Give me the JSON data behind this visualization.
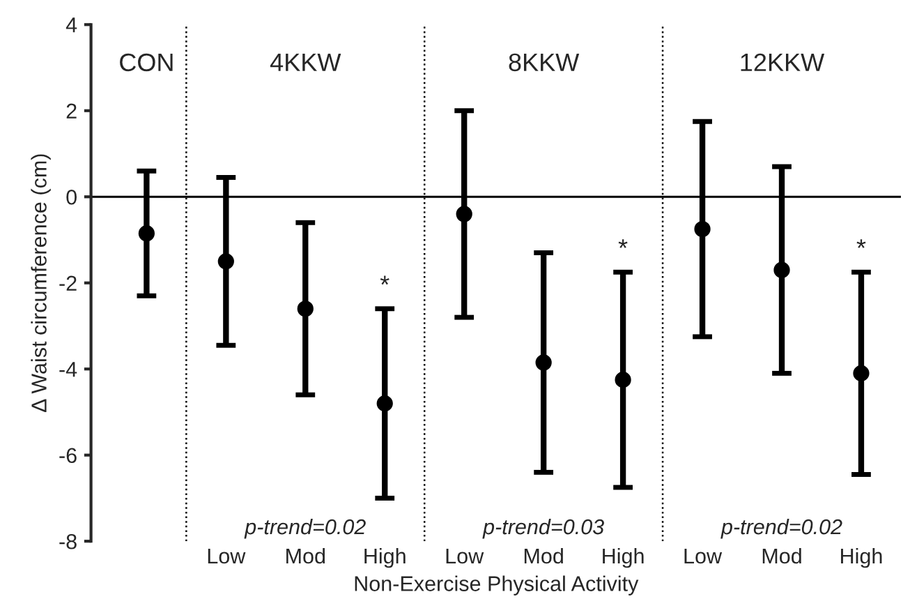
{
  "chart_data": {
    "type": "scatter",
    "xlabel": "Non-Exercise Physical Activity",
    "ylabel": "Δ Waist circumference (cm)",
    "categories": [
      null,
      "Low",
      "Mod",
      "High",
      "Low",
      "Mod",
      "High",
      "Low",
      "Mod",
      "High"
    ],
    "series": [
      {
        "color": "#000000",
        "values": [
          -0.85,
          -1.5,
          -2.6,
          -4.8,
          -0.4,
          -3.85,
          -4.25,
          -0.75,
          -1.7,
          -4.1
        ],
        "errors": [
          1.45,
          1.95,
          2.0,
          2.2,
          2.4,
          2.55,
          2.5,
          2.5,
          2.4,
          2.35
        ]
      }
    ],
    "marker": "circle",
    "ylim": [
      -8,
      4
    ],
    "yticks": [
      -8,
      -6,
      -4,
      -2,
      0,
      2,
      4
    ],
    "grid": false,
    "ref_lines": [
      {
        "axis": "y",
        "value": 0,
        "color": "#000000",
        "line_style": "solid"
      }
    ],
    "annotations": [
      "CON",
      "4KKW",
      "8KKW",
      "12KKW",
      "p-trend=0.02",
      "p-trend=0.03",
      "p-trend=0.02",
      "*",
      "*",
      "*"
    ]
  }
}
